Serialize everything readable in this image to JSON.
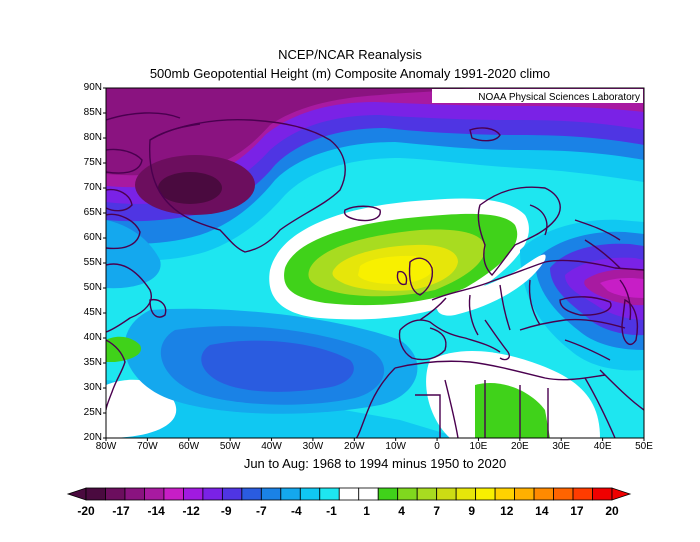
{
  "header": {
    "title_line1": "NCEP/NCAR Reanalysis",
    "title_line2": "500mb Geopotential Height (m) Composite Anomaly 1991-2020 climo",
    "credit": "NOAA Physical Sciences Laboratory"
  },
  "subtitle": "Jun to Aug: 1968 to 1994 minus 1950 to 2020",
  "axes": {
    "lat_labels": [
      "90N",
      "85N",
      "80N",
      "75N",
      "70N",
      "65N",
      "60N",
      "55N",
      "50N",
      "45N",
      "40N",
      "35N",
      "30N",
      "25N",
      "20N"
    ],
    "lon_labels": [
      "80W",
      "70W",
      "60W",
      "50W",
      "40W",
      "30W",
      "20W",
      "10W",
      "0",
      "10E",
      "20E",
      "30E",
      "40E",
      "50E"
    ]
  },
  "colorbar": {
    "labels": [
      "-20",
      "-17",
      "-14",
      "-12",
      "-9",
      "-7",
      "-4",
      "-1",
      "1",
      "4",
      "7",
      "9",
      "12",
      "14",
      "17",
      "20"
    ],
    "colors": [
      "#4a0a3f",
      "#6c0e5e",
      "#8a1380",
      "#a81aa1",
      "#c71ec6",
      "#a11ae0",
      "#7a22e6",
      "#4f35e3",
      "#2a5ce0",
      "#1a82e6",
      "#14a8ee",
      "#10c8f2",
      "#1ee6f0",
      "#ffffff",
      "#ffffff",
      "#40d21a",
      "#80d81e",
      "#a8dc20",
      "#ccdc14",
      "#e6e60a",
      "#f8f000",
      "#ffd200",
      "#ffb000",
      "#ff8a00",
      "#ff6400",
      "#ff3c00",
      "#f00000"
    ]
  },
  "colors": {
    "coast": "#4a004f",
    "frame": "#000000"
  }
}
